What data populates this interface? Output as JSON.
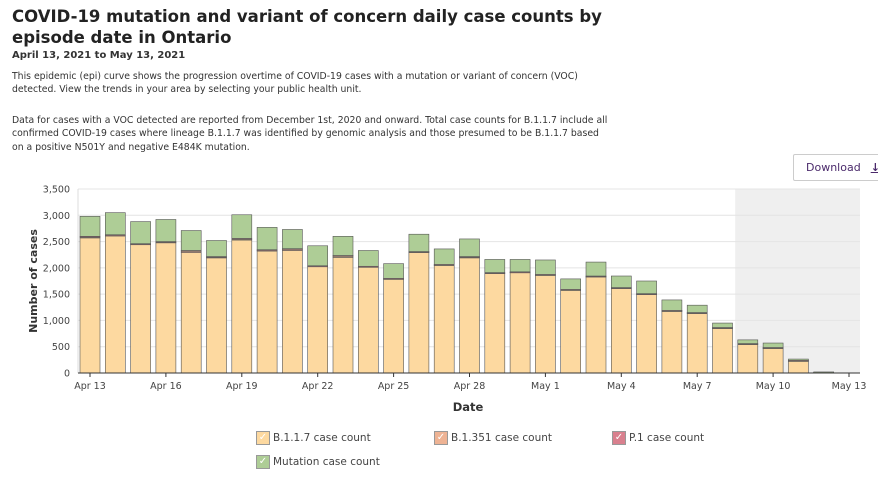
{
  "title": "COVID-19 mutation and variant of concern daily case counts by episode date in Ontario",
  "date_range": "April 13, 2021 to May 13, 2021",
  "description_1": "This epidemic (epi) curve shows the progression overtime of COVID-19 cases with a mutation or variant of concern (VOC) detected. View the trends in your area by selecting your public health unit.",
  "description_2": "Data for cases with a VOC detected are reported from December 1st, 2020 and onward. Total case counts for B.1.1.7 include all confirmed COVID-19 cases where lineage B.1.1.7 was identified by genomic analysis and those presumed to be B.1.1.7 based on a positive N501Y and negative E484K mutation.",
  "download_label": "Download",
  "download_icon": "download-arrow-icon",
  "chart_data": {
    "type": "bar",
    "stacked": true,
    "xlabel": "Date",
    "ylabel": "Number of cases",
    "ylim": [
      0,
      3500
    ],
    "yticks": [
      "0",
      "500",
      "1,000",
      "1,500",
      "2,000",
      "2,500",
      "3,000",
      "3,500"
    ],
    "grid": true,
    "legend_placement": "bottom",
    "shaded_region": [
      "May 9",
      "May 13"
    ],
    "x_tick_labels": [
      "Apr 13",
      "Apr 16",
      "Apr 19",
      "Apr 22",
      "Apr 25",
      "Apr 28",
      "May 1",
      "May 4",
      "May 7",
      "May 10",
      "May 13"
    ],
    "categories": [
      "Apr 13",
      "Apr 14",
      "Apr 15",
      "Apr 16",
      "Apr 17",
      "Apr 18",
      "Apr 19",
      "Apr 20",
      "Apr 21",
      "Apr 22",
      "Apr 23",
      "Apr 24",
      "Apr 25",
      "Apr 26",
      "Apr 27",
      "Apr 28",
      "Apr 29",
      "Apr 30",
      "May 1",
      "May 2",
      "May 3",
      "May 4",
      "May 5",
      "May 6",
      "May 7",
      "May 8",
      "May 9",
      "May 10",
      "May 11",
      "May 12",
      "May 13"
    ],
    "series": [
      {
        "name": "B.1.1.7 case count",
        "color": "#fdd9a0",
        "values": [
          2570,
          2610,
          2440,
          2480,
          2290,
          2190,
          2530,
          2320,
          2330,
          2030,
          2200,
          2020,
          1790,
          2300,
          2050,
          2190,
          1900,
          1915,
          1865,
          1580,
          1830,
          1615,
          1500,
          1180,
          1140,
          855,
          550,
          475,
          230,
          15,
          0
        ]
      },
      {
        "name": "B.1.351 case count",
        "color": "#eeb394",
        "values": [
          20,
          10,
          15,
          10,
          30,
          15,
          15,
          15,
          25,
          5,
          30,
          5,
          5,
          5,
          10,
          20,
          5,
          5,
          5,
          5,
          10,
          5,
          5,
          5,
          5,
          5,
          5,
          5,
          5,
          0,
          0
        ]
      },
      {
        "name": "P.1 case count",
        "color": "#d9808e",
        "values": [
          10,
          10,
          5,
          10,
          10,
          10,
          15,
          10,
          10,
          5,
          5,
          5,
          5,
          5,
          5,
          5,
          5,
          5,
          5,
          5,
          5,
          5,
          5,
          5,
          5,
          5,
          5,
          5,
          5,
          0,
          0
        ]
      },
      {
        "name": "Mutation case count",
        "color": "#aecd96",
        "values": [
          380,
          420,
          420,
          420,
          380,
          305,
          450,
          425,
          365,
          380,
          365,
          300,
          280,
          330,
          295,
          335,
          250,
          235,
          275,
          200,
          265,
          220,
          240,
          200,
          140,
          85,
          70,
          85,
          25,
          5,
          0
        ]
      }
    ]
  }
}
